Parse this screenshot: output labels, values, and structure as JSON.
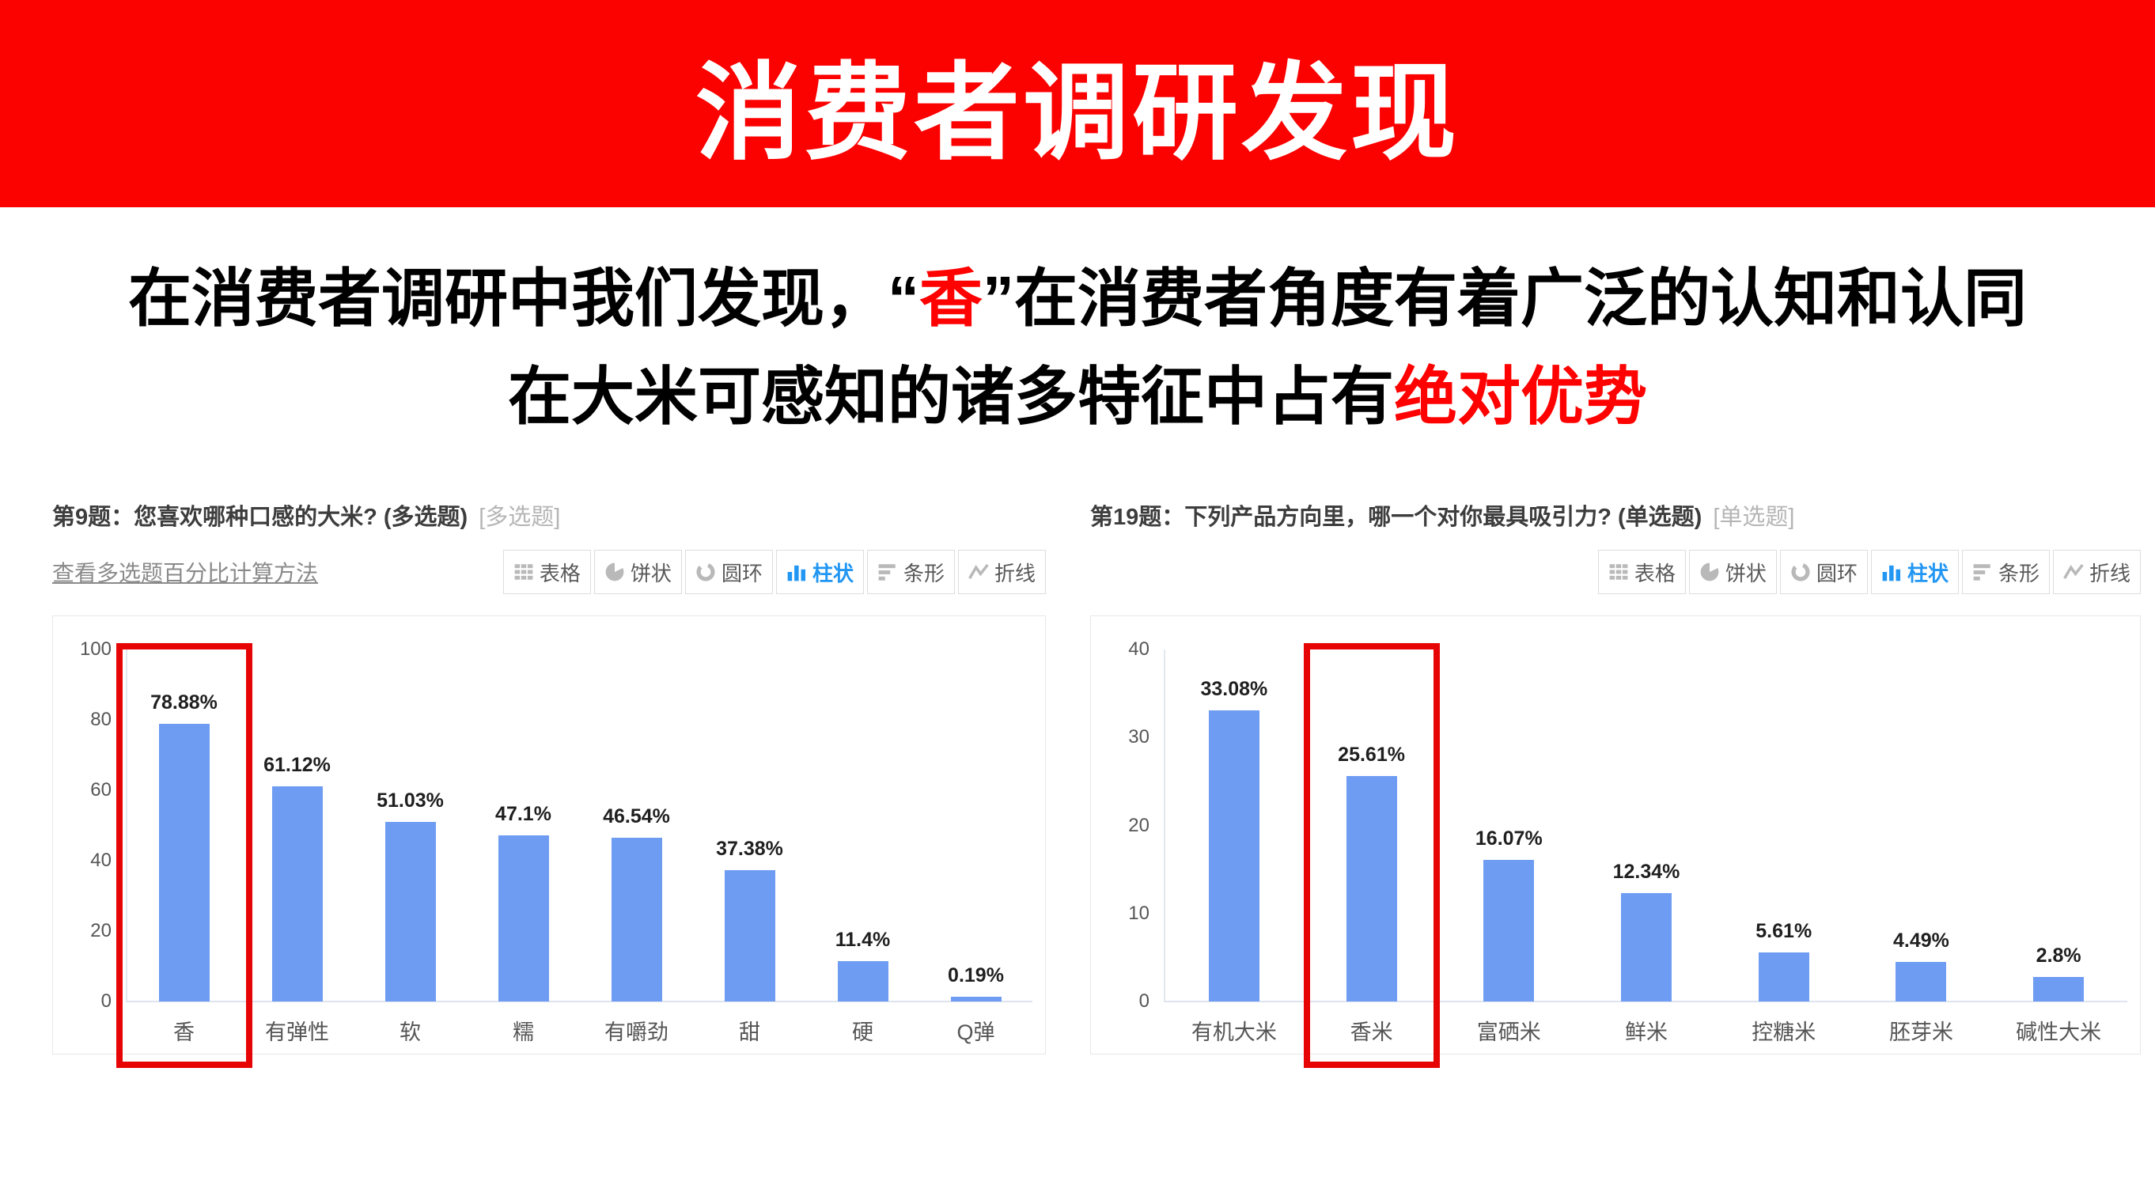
{
  "header": {
    "title": "消费者调研发现",
    "bg_color": "#fb0100",
    "text_color": "#ffffff"
  },
  "subtitle": {
    "accent_color": "#fe0100",
    "lines": [
      {
        "segments": [
          {
            "text": "在消费者调研中我们发现，“",
            "red": false
          },
          {
            "text": "香",
            "red": true
          },
          {
            "text": "”在消费者角度有着广泛的认知和认同",
            "red": false
          }
        ]
      },
      {
        "segments": [
          {
            "text": "在大米可感知的诸多特征中占有",
            "red": false
          },
          {
            "text": "绝对优势",
            "red": true
          }
        ]
      }
    ]
  },
  "toolbar": {
    "active_color": "#2196f3",
    "buttons": [
      {
        "id": "table",
        "label": "表格",
        "active": false
      },
      {
        "id": "pie",
        "label": "饼状",
        "active": false
      },
      {
        "id": "donut",
        "label": "圆环",
        "active": false
      },
      {
        "id": "column",
        "label": "柱状",
        "active": true
      },
      {
        "id": "bar",
        "label": "条形",
        "active": false
      },
      {
        "id": "line",
        "label": "折线",
        "active": false
      }
    ]
  },
  "chart_data": [
    {
      "type": "bar",
      "title": "第9题：您喜欢哪种口感的大米? (多选题)",
      "tag": "[多选题]",
      "link": "查看多选题百分比计算方法",
      "categories": [
        "香",
        "有弹性",
        "软",
        "糯",
        "有嚼劲",
        "甜",
        "硬",
        "Q弹"
      ],
      "values": [
        78.88,
        61.12,
        51.03,
        47.1,
        46.54,
        37.38,
        11.4,
        0.19
      ],
      "value_labels": [
        "78.88%",
        "61.12%",
        "51.03%",
        "47.1%",
        "46.54%",
        "37.38%",
        "11.4%",
        "0.19%"
      ],
      "ylim": [
        0,
        100
      ],
      "yticks": [
        0,
        20,
        40,
        60,
        80,
        100
      ],
      "grid": false,
      "highlight": "香",
      "bar_color": "#6e9cf3",
      "highlight_color": "#e60404"
    },
    {
      "type": "bar",
      "title": "第19题：下列产品方向里，哪一个对你最具吸引力? (单选题)",
      "tag": "[单选题]",
      "link": null,
      "categories": [
        "有机大米",
        "香米",
        "富硒米",
        "鲜米",
        "控糖米",
        "胚芽米",
        "碱性大米"
      ],
      "values": [
        33.08,
        25.61,
        16.07,
        12.34,
        5.61,
        4.49,
        2.8
      ],
      "value_labels": [
        "33.08%",
        "25.61%",
        "16.07%",
        "12.34%",
        "5.61%",
        "4.49%",
        "2.8%"
      ],
      "ylim": [
        0,
        40
      ],
      "yticks": [
        0,
        10,
        20,
        30,
        40
      ],
      "grid": false,
      "highlight": "香米",
      "bar_color": "#6e9cf3",
      "highlight_color": "#e60404"
    }
  ]
}
